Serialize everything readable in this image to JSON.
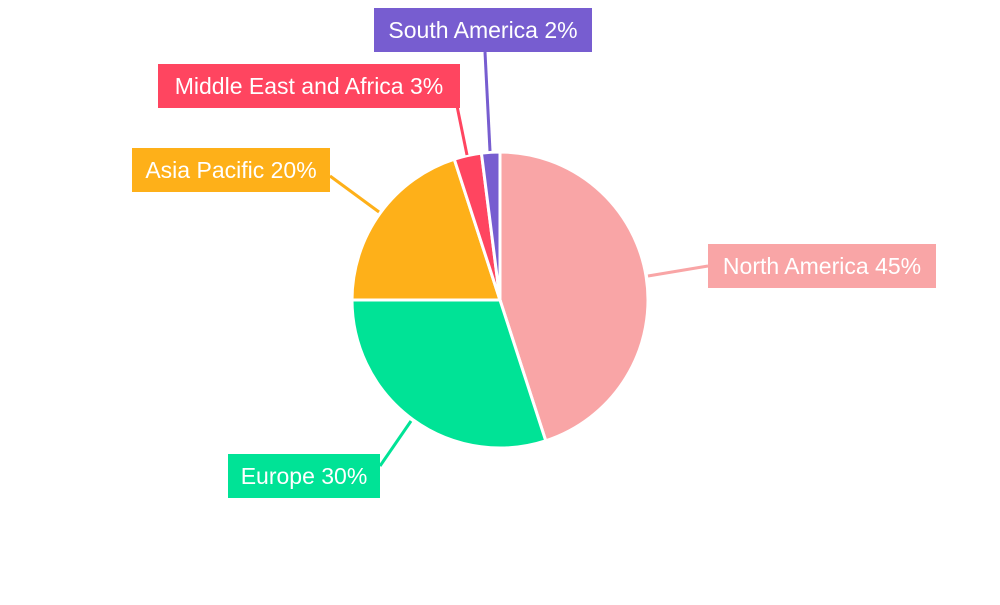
{
  "chart_data": {
    "type": "pie",
    "title": "",
    "start_angle_deg": 0,
    "direction": "clockwise",
    "legend": "none",
    "slices": [
      {
        "label": "North America",
        "value": 45,
        "display": "North America 45%",
        "color": "#F9A5A6"
      },
      {
        "label": "Europe",
        "value": 30,
        "display": "Europe 30%",
        "color": "#00E396"
      },
      {
        "label": "Asia Pacific",
        "value": 20,
        "display": "Asia Pacific 20%",
        "color": "#FEB019"
      },
      {
        "label": "Middle East and Africa",
        "value": 3,
        "display": "Middle East and Africa 3%",
        "color": "#FF4560"
      },
      {
        "label": "South America",
        "value": 2,
        "display": "South America 2%",
        "color": "#775DD0"
      }
    ]
  }
}
